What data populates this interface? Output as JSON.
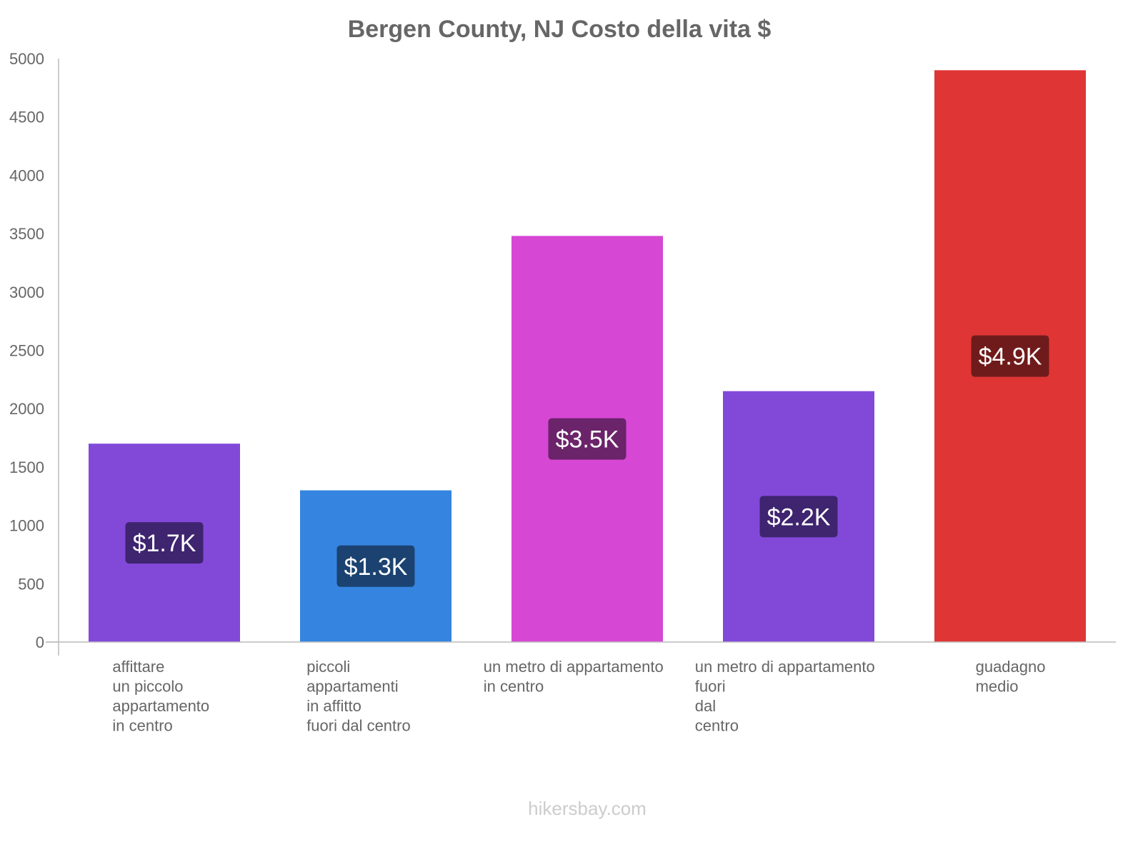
{
  "chart_data": {
    "type": "bar",
    "title": "Bergen County, NJ Costo della vita $",
    "xlabel": "",
    "ylabel": "",
    "ylim": [
      0,
      5000
    ],
    "yticks": [
      0,
      500,
      1000,
      1500,
      2000,
      2500,
      3000,
      3500,
      4000,
      4500,
      5000
    ],
    "grid": false,
    "categories": [
      [
        "affittare",
        "un piccolo",
        "appartamento",
        "in centro"
      ],
      [
        "piccoli",
        "appartamenti",
        "in affitto",
        "fuori dal centro"
      ],
      [
        "un metro di appartamento",
        "in centro"
      ],
      [
        "un metro di appartamento",
        "fuori",
        "dal",
        "centro"
      ],
      [
        "guadagno",
        "medio"
      ]
    ],
    "values": [
      1700,
      1300,
      3480,
      2150,
      4900
    ],
    "data_labels": [
      "$1.7K",
      "$1.3K",
      "$3.5K",
      "$2.2K",
      "$4.9K"
    ],
    "colors": [
      "#8249d9",
      "#3584e0",
      "#d647d4",
      "#8249d9",
      "#e03535"
    ],
    "label_colors": [
      "#3f2470",
      "#1b4270",
      "#6b236a",
      "#3f2470",
      "#701b1b"
    ]
  },
  "watermark": "hikersbay.com"
}
